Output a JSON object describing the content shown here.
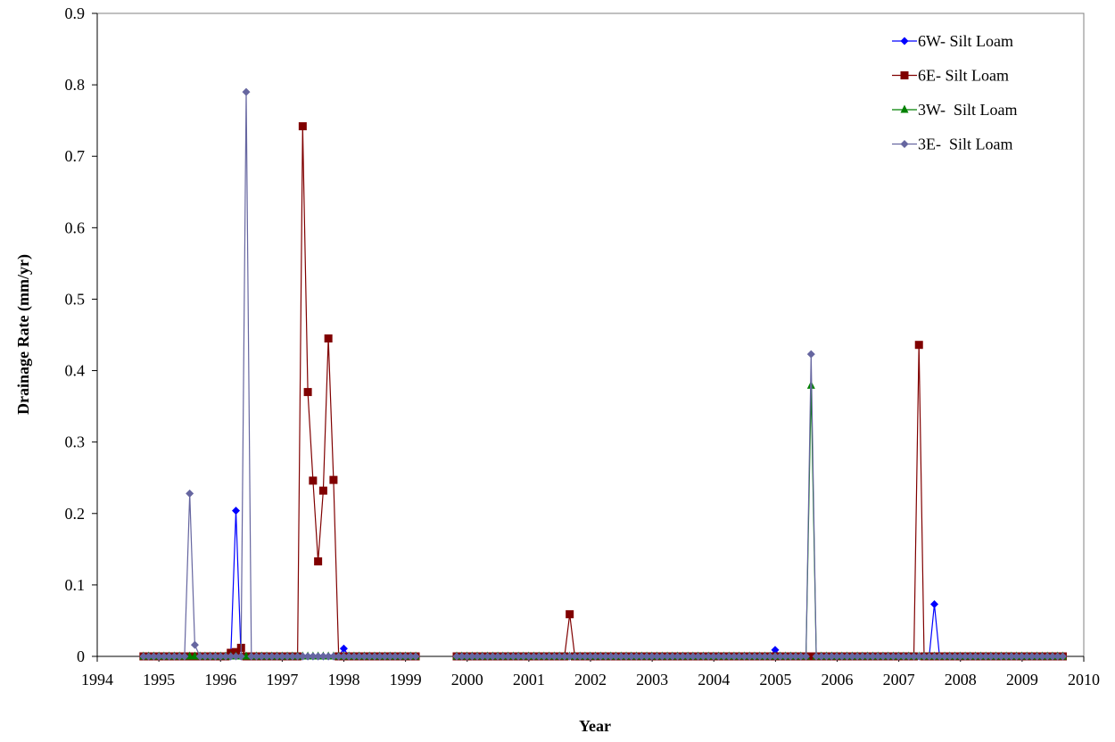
{
  "chart_data": {
    "type": "line",
    "title": "",
    "xlabel": "Year",
    "ylabel": "Drainage Rate (mm/yr)",
    "xlim": [
      1994,
      2010
    ],
    "ylim": [
      0,
      0.9
    ],
    "x_ticks": [
      1994,
      1995,
      1996,
      1997,
      1998,
      1999,
      2000,
      2001,
      2002,
      2003,
      2004,
      2005,
      2006,
      2007,
      2008,
      2009,
      2010
    ],
    "y_ticks": [
      0,
      0.1,
      0.2,
      0.3,
      0.4,
      0.5,
      0.6,
      0.7,
      0.8,
      0.9
    ],
    "x_tick_labels": [
      "1994",
      "1995",
      "1996",
      "1997",
      "1998",
      "1999",
      "2000",
      "2001",
      "2002",
      "2003",
      "2004",
      "2005",
      "2006",
      "2007",
      "2008",
      "2009",
      "2010"
    ],
    "y_tick_labels": [
      "0",
      "0.1",
      "0.2",
      "0.3",
      "0.4",
      "0.5",
      "0.6",
      "0.7",
      "0.8",
      "0.9"
    ],
    "grid": false,
    "legend_position": "top-right",
    "segments": [
      {
        "start": 1994.75,
        "end": 1999.17
      },
      {
        "start": 1999.83,
        "end": 2009.67
      }
    ],
    "baseline_step": 0.0833,
    "series": [
      {
        "name": "6W- Silt Loam",
        "color": "#0000FF",
        "marker": "diamond",
        "nonzero": [
          [
            1996.25,
            0.204
          ],
          [
            1998.0,
            0.011
          ],
          [
            2004.96,
            0.009
          ],
          [
            2007.58,
            0.073
          ]
        ]
      },
      {
        "name": "6E- Silt Loam",
        "color": "#800000",
        "marker": "square",
        "nonzero": [
          [
            1996.17,
            0.005
          ],
          [
            1996.25,
            0.006
          ],
          [
            1996.33,
            0.012
          ],
          [
            1997.33,
            0.742
          ],
          [
            1997.42,
            0.37
          ],
          [
            1997.5,
            0.246
          ],
          [
            1997.58,
            0.133
          ],
          [
            1997.67,
            0.232
          ],
          [
            1997.75,
            0.445
          ],
          [
            1997.83,
            0.247
          ],
          [
            2001.67,
            0.059
          ],
          [
            2007.33,
            0.436
          ]
        ]
      },
      {
        "name": "3W-  Silt Loam",
        "color": "#008000",
        "marker": "triangle",
        "nonzero": [
          [
            2005.58,
            0.379
          ]
        ]
      },
      {
        "name": "3E-  Silt Loam",
        "color": "#6666A0",
        "marker": "diamond",
        "nonzero": [
          [
            1995.5,
            0.228
          ],
          [
            1995.58,
            0.016
          ],
          [
            1996.42,
            0.79
          ],
          [
            2005.58,
            0.423
          ]
        ]
      }
    ]
  }
}
